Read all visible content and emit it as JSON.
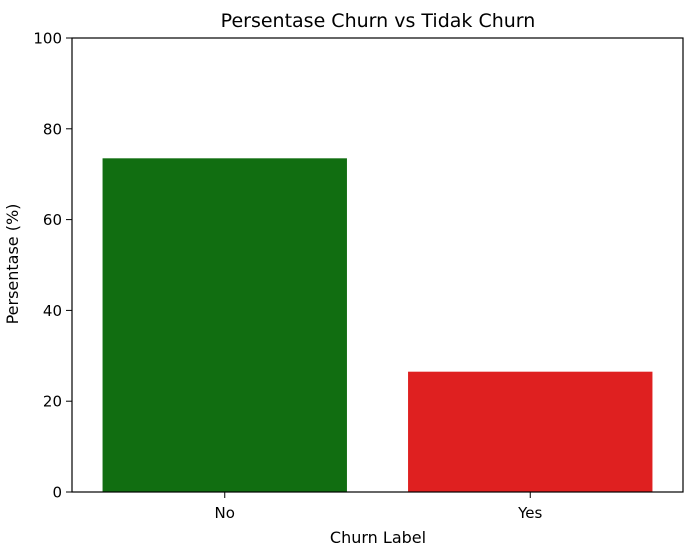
{
  "chart_data": {
    "type": "bar",
    "title": "Persentase Churn vs Tidak Churn",
    "xlabel": "Churn Label",
    "ylabel": "Persentase (%)",
    "categories": [
      "No",
      "Yes"
    ],
    "values": [
      73.5,
      26.5
    ],
    "ylim": [
      0,
      100
    ],
    "yticks": [
      0,
      20,
      40,
      60,
      80,
      100
    ],
    "colors": [
      "#116e11",
      "#df2020"
    ],
    "grid": false
  }
}
